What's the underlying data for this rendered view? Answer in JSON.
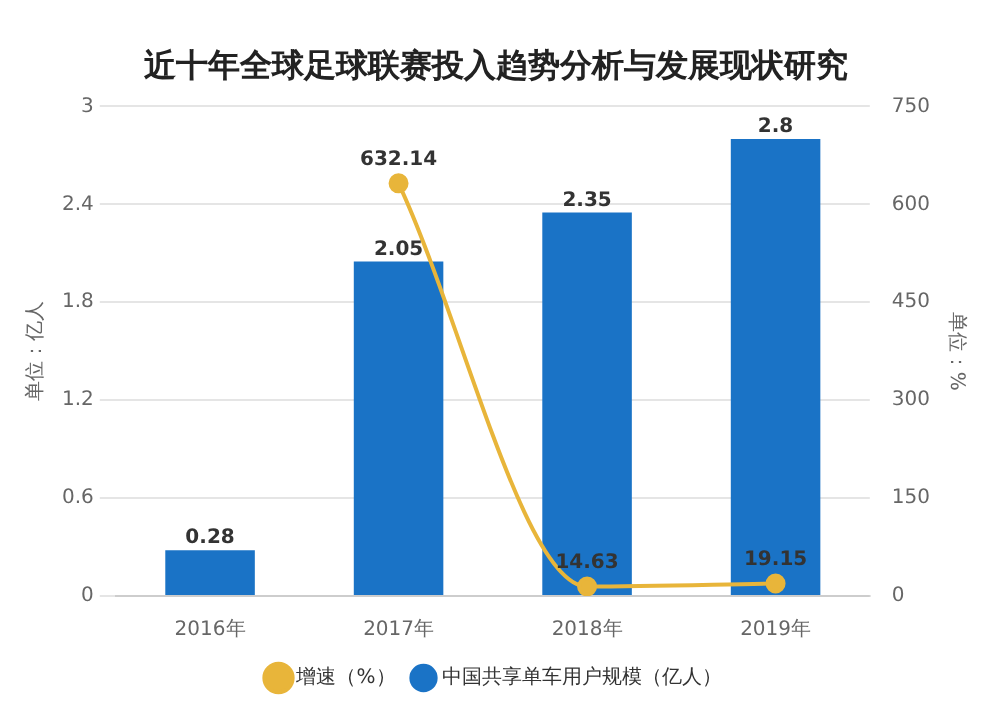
{
  "chart_data": {
    "type": "bar",
    "title": "近十年全球足球联赛投入趋势分析与发展现状研究",
    "ylabel": "单位：亿人",
    "y2label": "单位：%",
    "categories": [
      "2016年",
      "2017年",
      "2018年",
      "2019年"
    ],
    "series": [
      {
        "name": "中国共享单车用户规模（亿人）",
        "color": "#1a73c6",
        "values": [
          0.28,
          2.05,
          2.35,
          2.8
        ]
      },
      {
        "name": "增速（%）",
        "type": "line",
        "axis": "y2",
        "color": "#e8b53a",
        "values": [
          null,
          632.14,
          14.63,
          19.15
        ]
      }
    ],
    "ylim": [
      0,
      3
    ],
    "yticks": [
      0,
      0.6,
      1.2,
      1.8,
      2.4,
      3
    ],
    "y2lim": [
      0,
      750
    ],
    "y2ticks": [
      0,
      150,
      300,
      450,
      600,
      750
    ],
    "grid": "y",
    "legend": "bottom",
    "marker": "circle",
    "data_labels": true
  }
}
